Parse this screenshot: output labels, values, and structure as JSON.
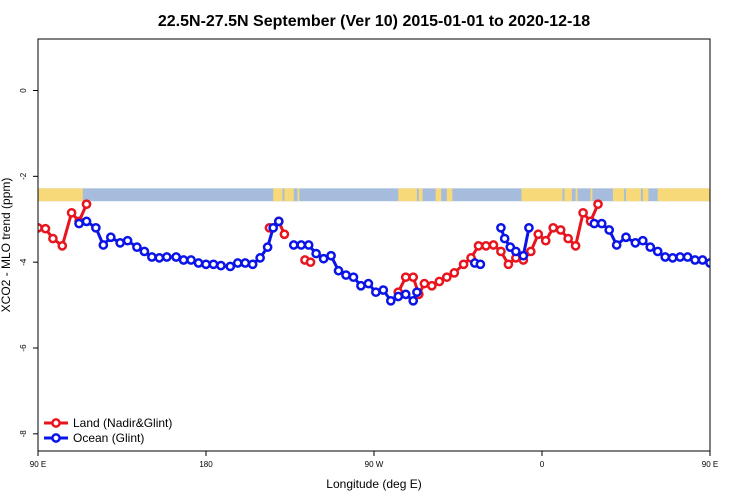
{
  "chart_data": {
    "type": "line",
    "title": "22.5N-27.5N September (Ver 10)   2015-01-01 to 2020-12-18",
    "xlabel": "Longitude (deg E)",
    "ylabel": "XCO2 - MLO trend (ppm)",
    "xlim": [
      90,
      450
    ],
    "ylim": [
      -8.4,
      1.2
    ],
    "x_ticks": [
      {
        "value": 90,
        "label": "90 E"
      },
      {
        "value": 180,
        "label": "180"
      },
      {
        "value": 270,
        "label": "90 W"
      },
      {
        "value": 360,
        "label": "0"
      },
      {
        "value": 450,
        "label": "90 E"
      },
      {
        "value": 540,
        "label": "180"
      }
    ],
    "y_ticks": [
      {
        "value": 0,
        "label": "0"
      },
      {
        "value": -2,
        "label": "-2"
      },
      {
        "value": -4,
        "label": "-4"
      },
      {
        "value": -6,
        "label": "-6"
      },
      {
        "value": -8,
        "label": "-8"
      }
    ],
    "land_band": {
      "y_top": -2.28,
      "y_bottom": -2.58,
      "ocean_color": "#a5bcdc",
      "land_color": "#f7d97a",
      "land_segments": [
        [
          90,
          114
        ],
        [
          216,
          221
        ],
        [
          222,
          224
        ],
        [
          224,
          227
        ],
        [
          229,
          230
        ],
        [
          283,
          293
        ],
        [
          294,
          296
        ],
        [
          303,
          306
        ],
        [
          309,
          312
        ],
        [
          349,
          371
        ],
        [
          372,
          376
        ],
        [
          378,
          379
        ],
        [
          386,
          387
        ],
        [
          398,
          404
        ],
        [
          405,
          413
        ],
        [
          414,
          417
        ],
        [
          422,
          480
        ]
      ]
    },
    "series": [
      {
        "name": "Land (Nadir&Glint)",
        "color": "#e8141e",
        "segments": [
          [
            [
              90,
              -3.2
            ],
            [
              94,
              -3.22
            ],
            [
              98,
              -3.45
            ],
            [
              103,
              -3.62
            ],
            [
              108,
              -2.85
            ],
            [
              112,
              -3.05
            ],
            [
              116,
              -2.65
            ]
          ],
          [
            [
              214,
              -3.2
            ],
            [
              219,
              -3.05
            ],
            [
              222,
              -3.35
            ]
          ],
          [
            [
              233,
              -3.95
            ],
            [
              236,
              -4.0
            ]
          ],
          [
            [
              283,
              -4.7
            ],
            [
              287,
              -4.35
            ],
            [
              291,
              -4.35
            ],
            [
              294,
              -4.75
            ],
            [
              297,
              -4.5
            ],
            [
              301,
              -4.55
            ],
            [
              305,
              -4.45
            ],
            [
              309,
              -4.35
            ],
            [
              313,
              -4.25
            ],
            [
              318,
              -4.05
            ],
            [
              322,
              -3.9
            ],
            [
              326,
              -3.62
            ],
            [
              330,
              -3.62
            ],
            [
              334,
              -3.6
            ],
            [
              338,
              -3.75
            ],
            [
              342,
              -4.05
            ],
            [
              346,
              -3.9
            ],
            [
              350,
              -3.95
            ],
            [
              354,
              -3.75
            ],
            [
              358,
              -3.35
            ],
            [
              362,
              -3.5
            ],
            [
              366,
              -3.2
            ],
            [
              370,
              -3.25
            ],
            [
              374,
              -3.45
            ],
            [
              378,
              -3.62
            ],
            [
              382,
              -2.85
            ],
            [
              386,
              -3.05
            ],
            [
              390,
              -2.65
            ]
          ]
        ]
      },
      {
        "name": "Ocean (Glint)",
        "color": "#0a14e6",
        "segments": [
          [
            [
              112,
              -3.1
            ],
            [
              116,
              -3.05
            ],
            [
              121,
              -3.2
            ],
            [
              125,
              -3.6
            ],
            [
              129,
              -3.42
            ],
            [
              134,
              -3.55
            ],
            [
              138,
              -3.5
            ],
            [
              143,
              -3.65
            ],
            [
              147,
              -3.75
            ],
            [
              151,
              -3.88
            ],
            [
              155,
              -3.9
            ],
            [
              159,
              -3.88
            ],
            [
              164,
              -3.88
            ],
            [
              168,
              -3.95
            ],
            [
              172,
              -3.95
            ],
            [
              176,
              -4.02
            ],
            [
              180,
              -4.05
            ],
            [
              184,
              -4.05
            ],
            [
              188,
              -4.08
            ],
            [
              193,
              -4.1
            ],
            [
              197,
              -4.02
            ],
            [
              201,
              -4.02
            ],
            [
              205,
              -4.05
            ],
            [
              209,
              -3.9
            ],
            [
              213,
              -3.65
            ],
            [
              216,
              -3.2
            ],
            [
              219,
              -3.05
            ]
          ],
          [
            [
              227,
              -3.6
            ],
            [
              231,
              -3.6
            ],
            [
              235,
              -3.6
            ],
            [
              239,
              -3.8
            ],
            [
              243,
              -3.92
            ],
            [
              247,
              -3.85
            ],
            [
              251,
              -4.2
            ],
            [
              255,
              -4.3
            ],
            [
              259,
              -4.35
            ],
            [
              263,
              -4.55
            ],
            [
              267,
              -4.5
            ],
            [
              271,
              -4.7
            ],
            [
              275,
              -4.65
            ],
            [
              279,
              -4.9
            ],
            [
              283,
              -4.8
            ],
            [
              287,
              -4.75
            ],
            [
              291,
              -4.9
            ],
            [
              293,
              -4.7
            ]
          ],
          [
            [
              324,
              -4.02
            ],
            [
              327,
              -4.05
            ]
          ],
          [
            [
              338,
              -3.2
            ],
            [
              340,
              -3.45
            ],
            [
              343,
              -3.65
            ],
            [
              346,
              -3.75
            ],
            [
              350,
              -3.85
            ],
            [
              353,
              -3.2
            ]
          ],
          [
            [
              388,
              -3.1
            ],
            [
              392,
              -3.1
            ],
            [
              396,
              -3.25
            ],
            [
              400,
              -3.6
            ],
            [
              405,
              -3.42
            ],
            [
              410,
              -3.55
            ],
            [
              414,
              -3.5
            ],
            [
              418,
              -3.65
            ],
            [
              422,
              -3.75
            ],
            [
              426,
              -3.88
            ],
            [
              430,
              -3.9
            ],
            [
              434,
              -3.88
            ],
            [
              438,
              -3.88
            ],
            [
              442,
              -3.95
            ],
            [
              446,
              -3.95
            ],
            [
              450,
              -4.02
            ]
          ]
        ]
      }
    ],
    "legend": {
      "placement": "bottom-left",
      "entries": [
        "Land (Nadir&Glint)",
        "Ocean (Glint)"
      ]
    }
  }
}
